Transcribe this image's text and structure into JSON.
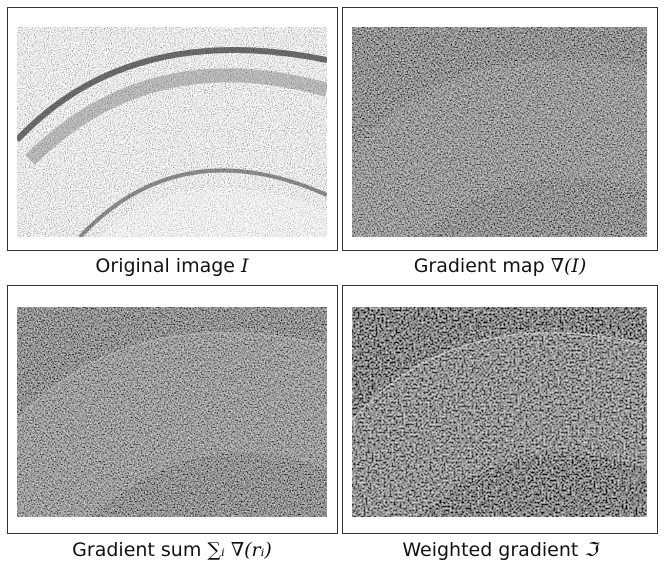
{
  "panels": [
    {
      "caption": "Original image",
      "math": "I"
    },
    {
      "caption": "Gradient map",
      "math": "∇(I)"
    },
    {
      "caption": "Gradient sum",
      "math": "∑ᵢ ∇(rᵢ)"
    },
    {
      "caption": "Weighted gradient",
      "math": "ℑ"
    }
  ]
}
